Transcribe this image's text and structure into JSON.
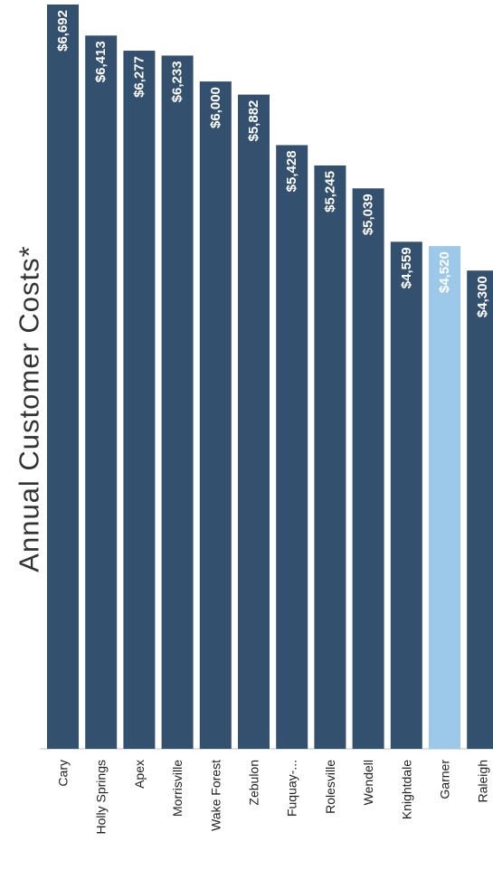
{
  "chart_data": {
    "type": "bar",
    "title": "Annual Customer Costs*",
    "categories": [
      "Cary",
      "Holly Springs",
      "Apex",
      "Morrisville",
      "Wake Forest",
      "Zebulon",
      "Fuquay-...",
      "Rolesville",
      "Wendell",
      "Knightdale",
      "Garner",
      "Raleigh"
    ],
    "values": [
      6692,
      6413,
      6277,
      6233,
      6000,
      5882,
      5428,
      5245,
      5039,
      4559,
      4520,
      4300
    ],
    "value_labels": [
      "$6,692",
      "$6,413",
      "$6,277",
      "$6,233",
      "$6,000",
      "$5,882",
      "$5,428",
      "$5,245",
      "$5,039",
      "$4,559",
      "$4,520",
      "$4,300"
    ],
    "highlight_index": 10,
    "colors": {
      "bar": "#34506f",
      "highlight": "#9cc8ea",
      "bar_label": "#ffffff",
      "highlight_label": "#ffffff"
    },
    "orientation": "rotated",
    "grid": false,
    "legend": "none"
  }
}
